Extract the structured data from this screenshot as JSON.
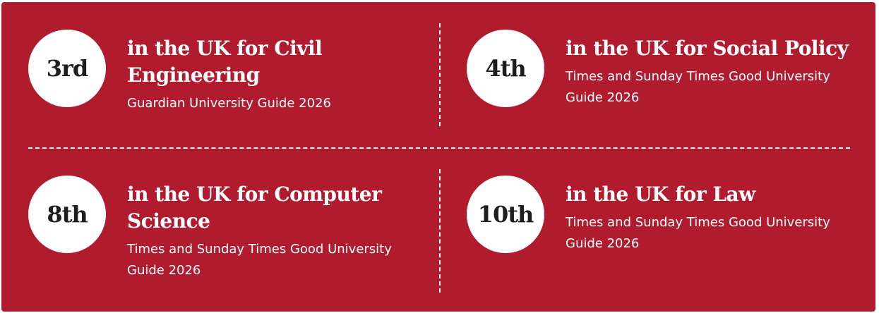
{
  "rankings": [
    {
      "rank": "3rd",
      "title": "in the UK for Civil Engineering",
      "source": "Guardian University Guide 2026"
    },
    {
      "rank": "4th",
      "title": "in the UK for Social Policy",
      "source": "Times and Sunday Times Good University Guide 2026"
    },
    {
      "rank": "8th",
      "title": "in the UK for Computer Science",
      "source": "Times and Sunday Times Good University Guide 2026"
    },
    {
      "rank": "10th",
      "title": "in the UK for Law",
      "source": "Times and Sunday Times Good University Guide 2026"
    }
  ],
  "colors": {
    "background": "#b01b2e",
    "circle": "#ffffff",
    "rank_text": "#1e1e1e"
  }
}
